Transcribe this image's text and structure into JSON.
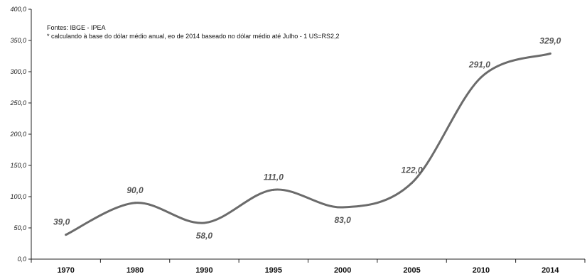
{
  "chart_data": {
    "type": "line",
    "x": [
      "1970",
      "1980",
      "1990",
      "1995",
      "2000",
      "2005",
      "2010",
      "2014"
    ],
    "values": [
      39.0,
      90.0,
      58.0,
      111.0,
      83.0,
      122.0,
      291.0,
      329.0
    ],
    "data_labels": [
      "39,0",
      "90,0",
      "58,0",
      "111,0",
      "83,0",
      "122,0",
      "291,0",
      "329,0"
    ],
    "y_ticks": [
      "0,0",
      "50,0",
      "100,0",
      "150,0",
      "200,0",
      "250,0",
      "300,0",
      "350,0",
      "400,0"
    ],
    "ylim": [
      0,
      400
    ],
    "grid": false,
    "annotations": {
      "source": "Fontes: IBGE - IPEA",
      "footnote": "* calculando à base do dólar médio anual, eo de 2014 baseado no dólar médio até Julho - 1 US=RS2,2"
    },
    "line_color": "#6b6b6b"
  }
}
